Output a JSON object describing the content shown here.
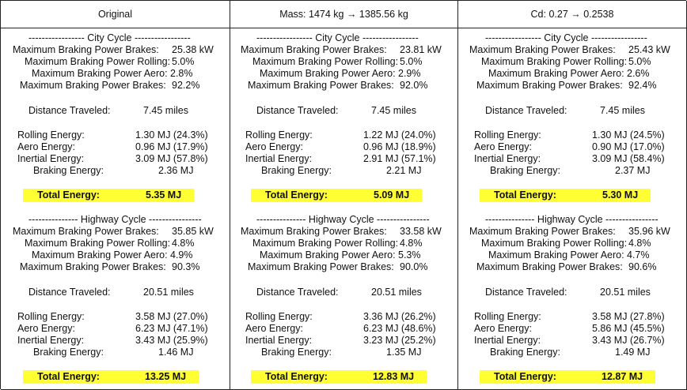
{
  "headers": [
    "Original",
    "Mass: 1474 kg → 1385.56 kg",
    "Cd: 0.27 → 0.2538"
  ],
  "labels": {
    "city_header": "----------------- City Cycle -----------------",
    "highway_header": "--------------- Highway Cycle ----------------",
    "max_brakes": "Maximum Braking Power Brakes:",
    "max_rolling": "Maximum Braking Power Rolling:",
    "max_aero": "Maximum Braking Power Aero:",
    "distance": "Distance Traveled:",
    "rolling_energy": "Rolling Energy:",
    "aero_energy": "Aero Energy:",
    "inertial_energy": "Inertial Energy:",
    "braking_energy": "Braking Energy:",
    "total_energy": "Total Energy:"
  },
  "columns": [
    {
      "city": {
        "max_brakes": "25.38 kW",
        "max_rolling": "5.0%",
        "max_aero": "2.8%",
        "max_brakes_pct": "92.2%",
        "distance": "7.45 miles",
        "rolling": "1.30 MJ (24.3%)",
        "aero": "0.96 MJ (17.9%)",
        "inertial": "3.09 MJ (57.8%)",
        "braking": "2.36 MJ",
        "total": "5.35 MJ"
      },
      "highway": {
        "max_brakes": "35.85 kW",
        "max_rolling": "4.8%",
        "max_aero": "4.9%",
        "max_brakes_pct": "90.3%",
        "distance": "20.51 miles",
        "rolling": "3.58 MJ (27.0%)",
        "aero": "6.23 MJ (47.1%)",
        "inertial": "3.43 MJ (25.9%)",
        "braking": "1.46 MJ",
        "total": "13.25 MJ"
      }
    },
    {
      "city": {
        "max_brakes": "23.81 kW",
        "max_rolling": "5.0%",
        "max_aero": "2.9%",
        "max_brakes_pct": "92.0%",
        "distance": "7.45 miles",
        "rolling": "1.22 MJ (24.0%)",
        "aero": "0.96 MJ (18.9%)",
        "inertial": "2.91 MJ (57.1%)",
        "braking": "2.21 MJ",
        "total": "5.09 MJ"
      },
      "highway": {
        "max_brakes": "33.58 kW",
        "max_rolling": "4.8%",
        "max_aero": "5.3%",
        "max_brakes_pct": "90.0%",
        "distance": "20.51 miles",
        "rolling": "3.36 MJ (26.2%)",
        "aero": "6.23 MJ (48.6%)",
        "inertial": "3.23 MJ (25.2%)",
        "braking": "1.35 MJ",
        "total": "12.83 MJ"
      }
    },
    {
      "city": {
        "max_brakes": "25.43 kW",
        "max_rolling": "5.0%",
        "max_aero": "2.6%",
        "max_brakes_pct": "92.4%",
        "distance": "7.45 miles",
        "rolling": "1.30 MJ (24.5%)",
        "aero": "0.90 MJ (17.0%)",
        "inertial": "3.09 MJ (58.4%)",
        "braking": "2.37 MJ",
        "total": "5.30 MJ"
      },
      "highway": {
        "max_brakes": "35.96 kW",
        "max_rolling": "4.8%",
        "max_aero": "4.7%",
        "max_brakes_pct": "90.6%",
        "distance": "20.51 miles",
        "rolling": "3.58 MJ (27.8%)",
        "aero": "5.86 MJ (45.5%)",
        "inertial": "3.43 MJ (26.7%)",
        "braking": "1.49 MJ",
        "total": "12.87 MJ"
      }
    }
  ]
}
